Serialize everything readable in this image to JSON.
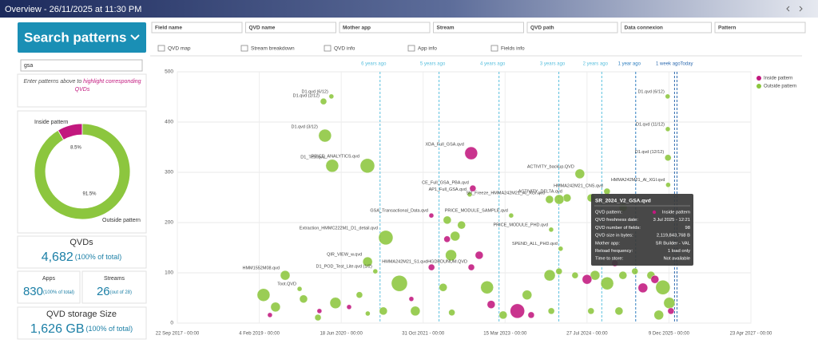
{
  "header": {
    "title": "Overview - 26/11/2025 at 11:30 PM"
  },
  "search": {
    "button": "Search patterns",
    "query": "gsa",
    "hint": "Enter patterns above to",
    "hint_highlight": "highlight corresponding QVDs"
  },
  "kpis": {
    "qvds": {
      "label": "QVDs",
      "value": "4,682",
      "note": "(100% of total)"
    },
    "apps": {
      "label": "Apps",
      "value": "830",
      "note": "(100% of total)"
    },
    "streams": {
      "label": "Streams",
      "value": "26",
      "note": "(out of 28)"
    },
    "storage": {
      "label": "QVD storage Size",
      "value": "1,626 GB",
      "note": "(100% of total)"
    }
  },
  "filters": [
    "Field name",
    "QVD name",
    "Mother app",
    "Stream",
    "QVD path",
    "Data connexion",
    "Pattern"
  ],
  "tabs": [
    "QVD map",
    "Stream breakdown",
    "QVD info",
    "App info",
    "Fields info"
  ],
  "tooltip": {
    "title": "SR_2024_V2_GSA.qvd",
    "rows": [
      [
        "QVD pattern:",
        "Inside pattern"
      ],
      [
        "QVD freshness date:",
        "3 Jul 2025 - 12:21"
      ],
      [
        "QVD number of fields:",
        "98"
      ],
      [
        "QVD size in bytes:",
        "2,119,843,768 B"
      ],
      [
        "Mother app:",
        "SR Builder - VAL"
      ],
      [
        "Reload frequency:",
        "1 load only"
      ],
      [
        "Time to store:",
        "Not available"
      ]
    ]
  },
  "chart_data": [
    {
      "type": "scatter",
      "grid": true,
      "legend": "top-right",
      "xlim": [
        "2017-09-22",
        "2027-04-23"
      ],
      "xticks": [
        {
          "value": "2017-09-22",
          "label": "22 Sep 2017 - 00:00"
        },
        {
          "value": "2019-02-04",
          "label": "4 Feb 2019 - 00:00"
        },
        {
          "value": "2020-06-18",
          "label": "18 Jun 2020 - 00:00"
        },
        {
          "value": "2021-10-31",
          "label": "31 Oct 2021 - 00:00"
        },
        {
          "value": "2023-03-15",
          "label": "15 Mar 2023 - 00:00"
        },
        {
          "value": "2024-07-27",
          "label": "27 Jul 2024 - 00:00"
        },
        {
          "value": "2025-12-09",
          "label": "9 Dec 2025 - 00:00"
        },
        {
          "value": "2027-04-23",
          "label": "23 Apr 2027 - 00:00"
        }
      ],
      "ylim": [
        0,
        500
      ],
      "yticks": [
        0,
        100,
        200,
        300,
        400,
        500
      ],
      "reference_lines": [
        {
          "label": "6 years ago",
          "x": "2021-02-10",
          "color": "#5bc0de"
        },
        {
          "label": "5 years ago",
          "x": "2022-02-05",
          "color": "#5bc0de"
        },
        {
          "label": "4 years ago",
          "x": "2023-02-06",
          "color": "#5bc0de"
        },
        {
          "label": "3 years ago",
          "x": "2024-02-06",
          "color": "#5bc0de"
        },
        {
          "label": "2 years ago",
          "x": "2024-10-25",
          "color": "#5bc0de"
        },
        {
          "label": "1 year ago",
          "x": "2025-05-20",
          "color": "#2f7fc0"
        },
        {
          "label": "1 week ago",
          "x": "2026-01-12",
          "color": "#2f6cb0"
        },
        {
          "label": "Today",
          "x": "2026-01-27",
          "color": "#2f6cb0"
        }
      ],
      "series": [
        {
          "name": "Inside pattern",
          "color": "#c2187e",
          "x": [
            "2022-08-20",
            "2022-08-30",
            "2021-12-20",
            "2022-08-21",
            "2021-12-21",
            "2025-07-03",
            "2023-05-29",
            "2022-12-20",
            "2024-07-27",
            "2025-01-13",
            "2020-08-05",
            "2021-08-20",
            "2022-03-26",
            "2023-08-21",
            "2025-09-14",
            "2025-12-21",
            "2020-02-06",
            "2019-04-10",
            "2022-10-08"
          ],
          "values": [
            338,
            268,
            214,
            111,
            111,
            70,
            24,
            37,
            87,
            119,
            32,
            48,
            167,
            16,
            87,
            24,
            24,
            16,
            135
          ],
          "sizes": [
            8,
            4,
            3,
            4,
            4,
            6,
            9,
            5,
            6,
            4,
            3,
            3,
            4,
            4,
            5,
            4,
            3,
            3,
            5
          ],
          "labels": [
            "XDA_Full_GSA.qvd",
            "CE_Full_GSA_PBA.qvd",
            "GSA_Transactional_Data.qvd",
            "HGDBDUNUM.QVD",
            "HMMA242M21_S1.qvd",
            null,
            null,
            null,
            null,
            null,
            null,
            null,
            null,
            null,
            null,
            null,
            null,
            null,
            null
          ]
        },
        {
          "name": "Outside pattern",
          "color": "#8cc63e",
          "x": [
            "2020-04-19",
            "2020-03-02",
            "2020-03-11",
            "2020-04-24",
            "2020-11-25",
            "2022-08-11",
            "2024-06-13",
            "2024-03-27",
            "2023-12-11",
            "2024-11-26",
            "2025-12-01",
            "2025-12-02",
            "2025-12-03",
            "2025-12-04",
            "2023-04-21",
            "2023-12-21",
            "2021-03-17",
            "2024-02-17",
            "2020-11-26",
            "2021-01-12",
            "2019-07-12",
            "2019-10-08",
            "2019-03-02",
            "2019-05-14",
            "2019-11-01",
            "2020-05-14",
            "2020-10-07",
            "2021-06-08",
            "2021-09-13",
            "2022-03-02",
            "2022-04-19",
            "2022-05-14",
            "2022-06-22",
            "2022-11-25",
            "2023-03-03",
            "2023-07-27",
            "2023-12-12",
            "2024-02-07",
            "2024-05-15",
            "2024-09-14",
            "2024-11-27",
            "2025-03-03",
            "2025-05-15",
            "2025-08-21",
            "2025-11-02",
            "2025-12-11",
            "2025-10-08",
            "2025-02-07",
            "2024-08-20",
            "2023-12-22",
            "2022-04-24",
            "2021-03-02",
            "2020-11-27",
            "2020-01-28",
            "2024-02-08",
            "2022-03-27",
            "2024-08-21",
            "2025-03-04"
          ],
          "values": [
            451,
            441,
            373,
            313,
            313,
            256,
            297,
            249,
            246,
            262,
            451,
            386,
            329,
            275,
            214,
            186,
            170,
            148,
            122,
            103,
            95,
            68,
            56,
            32,
            48,
            40,
            56,
            79,
            24,
            71,
            135,
            173,
            195,
            71,
            16,
            56,
            95,
            103,
            95,
            95,
            79,
            95,
            103,
            95,
            71,
            40,
            16,
            24,
            24,
            24,
            21,
            24,
            19,
            11,
            246,
            205,
            249,
            230
          ],
          "sizes": [
            3,
            4,
            8,
            8,
            9,
            3,
            6,
            5,
            5,
            4,
            3,
            3,
            4,
            3,
            3,
            3,
            9,
            3,
            6,
            3,
            6,
            3,
            8,
            6,
            5,
            7,
            4,
            10,
            6,
            5,
            7,
            6,
            5,
            8,
            5,
            6,
            7,
            4,
            4,
            6,
            8,
            5,
            4,
            5,
            9,
            7,
            6,
            5,
            4,
            4,
            4,
            5,
            3,
            4,
            6,
            5,
            5,
            5
          ],
          "labels": [
            "D1.qvd (6/12)",
            "D1.qvd (2/12)",
            "D1.qvd (3/12)",
            "D1_Test.qvd",
            "PRICE_ANALYTICS.qvd",
            "AP1_Full_GSA.qvd",
            "ACTIVITY_backup.QVD",
            "ACTIVITY_DELTA.qvd",
            "SR_Freeze_HMMA242M21_Al_XGI.qvd",
            "HMMA242M21_CNS.qvd",
            "D1.qvd (6/12)",
            "D1.qvd (11/12)",
            "D1.qvd (12/12)",
            "HMMA242M21_Al_XGI.qvd",
            "PRICE_MODULE_SAMPLE.qvd",
            "PRICE_MODULE_PHD.qvd",
            "Extraction_HMMC222M1_D1_detail.qvd",
            "SPEND_ALL_PHD.qvd",
            "QIR_VIEW_w.qvd",
            "D1_POD_Test_Lite.qvd (1/2)",
            "HMM1552M08.qvd",
            "Toot.QVD",
            null,
            null,
            null,
            null,
            null,
            null,
            null,
            null,
            null,
            null,
            null,
            null,
            null,
            null,
            null,
            null,
            null,
            null,
            null,
            null,
            null,
            null,
            null,
            null,
            null,
            null,
            null,
            null,
            null,
            null,
            null,
            null,
            null,
            null,
            null,
            null
          ]
        }
      ]
    },
    {
      "type": "pie",
      "categories": [
        "Inside pattern",
        "Outside pattern"
      ],
      "values": [
        8.5,
        91.5
      ],
      "value_labels": [
        "8.5%",
        "91.5%"
      ],
      "colors": [
        "#c2187e",
        "#8cc63e"
      ]
    }
  ]
}
